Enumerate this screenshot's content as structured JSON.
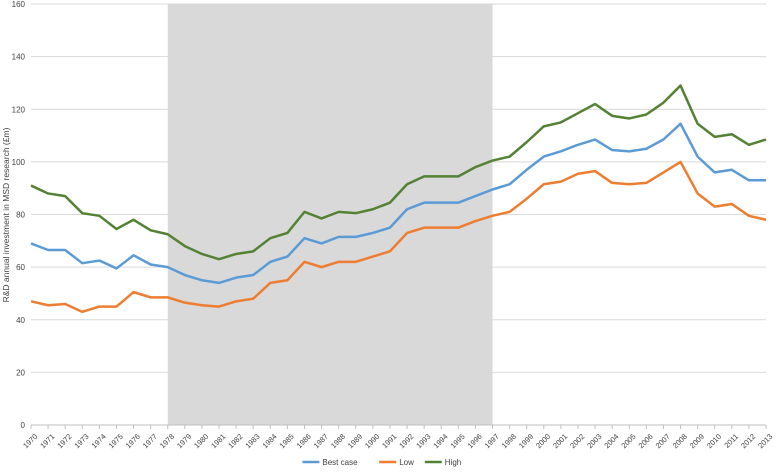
{
  "chart_data": {
    "type": "line",
    "title": "",
    "xlabel": "",
    "ylabel": "R&D annual investment in MSD research (£m)",
    "ylim": [
      0,
      160
    ],
    "yticks": [
      0,
      20,
      40,
      60,
      80,
      100,
      120,
      140,
      160
    ],
    "grid": "horizontal",
    "legend_position": "bottom-center",
    "shaded_region": {
      "from": "1978",
      "to": "1997",
      "color": "#d9d9d9"
    },
    "x": [
      "1970",
      "1971",
      "1972",
      "1973",
      "1974",
      "1975",
      "1976",
      "1977",
      "1978",
      "1979",
      "1980",
      "1981",
      "1982",
      "1983",
      "1984",
      "1985",
      "1986",
      "1987",
      "1988",
      "1989",
      "1990",
      "1991",
      "1992",
      "1993",
      "1994",
      "1995",
      "1996",
      "1997",
      "1998",
      "1999",
      "2000",
      "2001",
      "2002",
      "2003",
      "2004",
      "2005",
      "2006",
      "2007",
      "2008",
      "2009",
      "2010",
      "2011",
      "2012",
      "2013"
    ],
    "series": [
      {
        "name": "Best case",
        "color": "#5b9bd5",
        "values": [
          69,
          66.5,
          66.5,
          61.5,
          62.5,
          59.5,
          64.5,
          61,
          60,
          57,
          55,
          54,
          56,
          57,
          62,
          64,
          71,
          69,
          71.5,
          71.5,
          73,
          75,
          82,
          84.5,
          84.5,
          84.5,
          87,
          89.5,
          91.5,
          97,
          102,
          104,
          106.5,
          108.5,
          104.5,
          104,
          105,
          108.5,
          114.5,
          102,
          96,
          97,
          93,
          93
        ]
      },
      {
        "name": "Low",
        "color": "#ed7d31",
        "values": [
          47,
          45.5,
          46,
          43,
          45,
          45,
          50.5,
          48.5,
          48.5,
          46.5,
          45.5,
          45,
          47,
          48,
          54,
          55,
          62,
          60,
          62,
          62,
          64,
          66,
          73,
          75,
          75,
          75,
          77.5,
          79.5,
          81,
          86,
          91.5,
          92.5,
          95.5,
          96.5,
          92,
          91.5,
          92,
          96,
          100,
          88,
          83,
          84,
          79.5,
          78
        ]
      },
      {
        "name": "High",
        "color": "#548235",
        "values": [
          91,
          88,
          87,
          80.5,
          79.5,
          74.5,
          78,
          74,
          72.5,
          68,
          65,
          63,
          65,
          66,
          71,
          73,
          81,
          78.5,
          81,
          80.5,
          82,
          84.5,
          91.5,
          94.5,
          94.5,
          94.5,
          98,
          100.5,
          102,
          107.5,
          113.5,
          115,
          118.5,
          122,
          117.5,
          116.5,
          118,
          122.5,
          129,
          114.5,
          109.5,
          110.5,
          106.5,
          108.5
        ]
      }
    ]
  }
}
